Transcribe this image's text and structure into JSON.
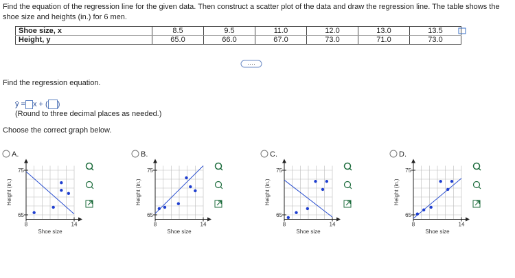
{
  "question": "Find the equation of the regression line for the given data. Then construct a scatter plot of the data and draw the regression line. The table shows the shoe size and heights (in.) for 6 men.",
  "table": {
    "rows": [
      [
        "Shoe size, x",
        "8.5",
        "9.5",
        "11.0",
        "12.0",
        "13.0",
        "13.5"
      ],
      [
        "Height, y",
        "65.0",
        "66.0",
        "67.0",
        "73.0",
        "71.0",
        "73.0"
      ]
    ]
  },
  "prompt": "Find the regression equation.",
  "equation": {
    "lhs": "ŷ =",
    "mid": "x +",
    "open": "(",
    "close": ")"
  },
  "round_note": "(Round to three decimal places as needed.)",
  "choose": "Choose the correct graph below.",
  "options": [
    {
      "label": "A.",
      "graph": {
        "ylabel": "Height (in.)",
        "xlabel": "Shoe size",
        "xlim": [
          8,
          14
        ],
        "ylim": [
          64,
          76
        ],
        "xticks": [
          8,
          14
        ],
        "yticks": [
          65,
          75
        ],
        "xgrid": [
          9,
          10,
          11,
          12,
          13
        ],
        "ygrid": [
          65,
          67,
          69,
          71,
          73,
          75
        ],
        "points": {
          "x": [
            9.0,
            11.4,
            12.4,
            12.4,
            13.3
          ],
          "y": [
            65.5,
            66.7,
            72.2,
            70.5,
            69.8
          ]
        },
        "line": {
          "x": [
            8,
            14
          ],
          "y": [
            74.7,
            65.2
          ]
        }
      }
    },
    {
      "label": "B.",
      "graph": {
        "ylabel": "Height (in.)",
        "xlabel": "Shoe size",
        "xlim": [
          8,
          14
        ],
        "ylim": [
          64,
          76
        ],
        "xticks": [
          8,
          14
        ],
        "yticks": [
          65,
          75
        ],
        "xgrid": [
          9,
          10,
          11,
          12,
          13
        ],
        "ygrid": [
          65,
          67,
          69,
          71,
          73,
          75
        ],
        "points": {
          "x": [
            8.5,
            9.2,
            10.9,
            11.9,
            12.4,
            13.0
          ],
          "y": [
            66.4,
            66.7,
            67.5,
            73.3,
            71.3,
            70.4
          ]
        },
        "line": {
          "x": [
            8,
            14
          ],
          "y": [
            65.3,
            76
          ]
        }
      }
    },
    {
      "label": "C.",
      "graph": {
        "ylabel": "Height (in.)",
        "xlabel": "Shoe size",
        "xlim": [
          8,
          14
        ],
        "ylim": [
          64,
          76
        ],
        "xticks": [
          8,
          14
        ],
        "yticks": [
          65,
          75
        ],
        "xgrid": [
          9,
          10,
          11,
          12,
          13
        ],
        "ygrid": [
          65,
          67,
          69,
          71,
          73,
          75
        ],
        "points": {
          "x": [
            8.5,
            9.5,
            10.9,
            11.9,
            12.8,
            13.3
          ],
          "y": [
            64.4,
            65.5,
            66.4,
            72.5,
            70.7,
            72.5
          ]
        },
        "line": {
          "x": [
            8,
            14
          ],
          "y": [
            72.8,
            64.5
          ]
        }
      }
    },
    {
      "label": "D.",
      "graph": {
        "ylabel": "Height (in.)",
        "xlabel": "Shoe size",
        "xlim": [
          8,
          14
        ],
        "ylim": [
          64,
          76
        ],
        "xticks": [
          8,
          14
        ],
        "yticks": [
          65,
          75
        ],
        "xgrid": [
          9,
          10,
          11,
          12,
          13
        ],
        "ygrid": [
          65,
          67,
          69,
          71,
          73,
          75
        ],
        "points": {
          "x": [
            8.5,
            9.3,
            10.2,
            11.4,
            12.3,
            12.8
          ],
          "y": [
            65.2,
            66.1,
            66.7,
            72.5,
            70.7,
            72.5
          ]
        },
        "line": {
          "x": [
            8,
            14
          ],
          "y": [
            64.2,
            73.2
          ]
        }
      }
    }
  ]
}
